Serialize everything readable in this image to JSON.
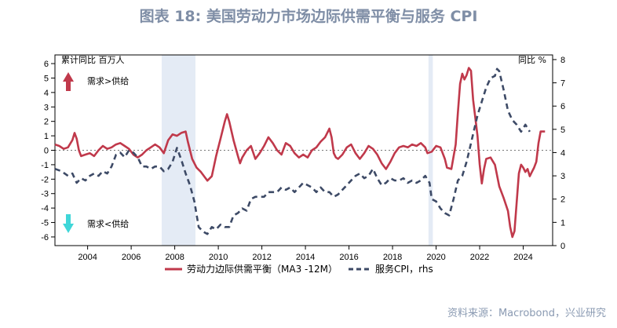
{
  "title": "图表 18: 美国劳动力市场边际供需平衡与服务 CPI",
  "source": "资料来源：Macrobond，兴业研究",
  "left_unit": "累计同比  百万人",
  "right_unit": "同比  %",
  "annotation_up": "需求>供给",
  "annotation_down": "需求<供给",
  "colors": {
    "labor": "#c0394b",
    "cpi": "#3d4a66",
    "recession": "#e4ebf5",
    "arrow_up": "#c0394b",
    "arrow_down": "#3fd6d8"
  },
  "chart_data": {
    "type": "line",
    "x_ticks": [
      "2004",
      "2006",
      "2008",
      "2010",
      "2012",
      "2014",
      "2016",
      "2018",
      "2020",
      "2022",
      "2024"
    ],
    "y_left": {
      "ticks": [
        "-6",
        "-5",
        "-4",
        "-3",
        "-2",
        "-1",
        "0",
        "1",
        "2",
        "3",
        "4",
        "5",
        "6"
      ],
      "range": [
        -6.6,
        6.6
      ]
    },
    "y_right": {
      "ticks": [
        "0",
        "1",
        "2",
        "3",
        "4",
        "5",
        "6",
        "7",
        "8"
      ],
      "range": [
        0,
        8.2
      ]
    },
    "recession_shading": [
      [
        2007.9,
        2009.45
      ],
      [
        2020.15,
        2020.35
      ]
    ],
    "series": [
      {
        "name": "劳动力边际供需平衡（MA3 -12M）",
        "axis": "left",
        "points": [
          [
            2003.0,
            0.4
          ],
          [
            2003.2,
            0.3
          ],
          [
            2003.4,
            0.1
          ],
          [
            2003.6,
            0.2
          ],
          [
            2003.8,
            0.7
          ],
          [
            2003.9,
            1.2
          ],
          [
            2004.0,
            0.8
          ],
          [
            2004.1,
            0.0
          ],
          [
            2004.2,
            -0.4
          ],
          [
            2004.4,
            -0.3
          ],
          [
            2004.6,
            -0.2
          ],
          [
            2004.8,
            -0.4
          ],
          [
            2005.0,
            0.0
          ],
          [
            2005.2,
            0.3
          ],
          [
            2005.4,
            0.1
          ],
          [
            2005.6,
            0.2
          ],
          [
            2005.8,
            0.4
          ],
          [
            2006.0,
            0.5
          ],
          [
            2006.2,
            0.3
          ],
          [
            2006.4,
            0.1
          ],
          [
            2006.6,
            -0.3
          ],
          [
            2006.8,
            -0.5
          ],
          [
            2007.0,
            -0.3
          ],
          [
            2007.2,
            0.0
          ],
          [
            2007.4,
            0.2
          ],
          [
            2007.6,
            0.4
          ],
          [
            2007.8,
            0.2
          ],
          [
            2008.0,
            -0.2
          ],
          [
            2008.2,
            0.7
          ],
          [
            2008.4,
            1.1
          ],
          [
            2008.6,
            1.0
          ],
          [
            2008.8,
            1.2
          ],
          [
            2009.0,
            1.3
          ],
          [
            2009.1,
            0.6
          ],
          [
            2009.3,
            -0.6
          ],
          [
            2009.5,
            -1.2
          ],
          [
            2009.7,
            -1.5
          ],
          [
            2009.9,
            -1.9
          ],
          [
            2010.0,
            -2.1
          ],
          [
            2010.2,
            -1.8
          ],
          [
            2010.4,
            -0.4
          ],
          [
            2010.6,
            0.8
          ],
          [
            2010.8,
            2.0
          ],
          [
            2010.9,
            2.5
          ],
          [
            2011.0,
            2.0
          ],
          [
            2011.2,
            0.7
          ],
          [
            2011.4,
            -0.4
          ],
          [
            2011.5,
            -0.9
          ],
          [
            2011.6,
            -0.5
          ],
          [
            2011.8,
            0.0
          ],
          [
            2012.0,
            0.3
          ],
          [
            2012.2,
            -0.6
          ],
          [
            2012.4,
            -0.2
          ],
          [
            2012.6,
            0.3
          ],
          [
            2012.8,
            0.9
          ],
          [
            2013.0,
            0.5
          ],
          [
            2013.2,
            0.0
          ],
          [
            2013.4,
            -0.3
          ],
          [
            2013.6,
            0.5
          ],
          [
            2013.8,
            0.3
          ],
          [
            2014.0,
            -0.2
          ],
          [
            2014.2,
            -0.5
          ],
          [
            2014.4,
            -0.3
          ],
          [
            2014.6,
            -0.5
          ],
          [
            2014.8,
            0.0
          ],
          [
            2015.0,
            0.2
          ],
          [
            2015.2,
            0.6
          ],
          [
            2015.4,
            0.9
          ],
          [
            2015.6,
            1.5
          ],
          [
            2015.7,
            0.9
          ],
          [
            2015.8,
            -0.2
          ],
          [
            2015.9,
            -0.5
          ],
          [
            2016.0,
            -0.6
          ],
          [
            2016.2,
            -0.3
          ],
          [
            2016.4,
            0.2
          ],
          [
            2016.6,
            0.4
          ],
          [
            2016.8,
            -0.2
          ],
          [
            2017.0,
            -0.6
          ],
          [
            2017.2,
            -0.2
          ],
          [
            2017.4,
            0.3
          ],
          [
            2017.6,
            0.1
          ],
          [
            2017.8,
            -0.3
          ],
          [
            2018.0,
            -0.9
          ],
          [
            2018.2,
            -1.3
          ],
          [
            2018.4,
            -0.8
          ],
          [
            2018.6,
            -0.2
          ],
          [
            2018.8,
            0.2
          ],
          [
            2019.0,
            0.3
          ],
          [
            2019.2,
            0.2
          ],
          [
            2019.4,
            0.4
          ],
          [
            2019.6,
            0.3
          ],
          [
            2019.8,
            0.5
          ],
          [
            2020.0,
            0.2
          ],
          [
            2020.1,
            -0.2
          ],
          [
            2020.3,
            -0.1
          ],
          [
            2020.5,
            0.3
          ],
          [
            2020.7,
            0.2
          ],
          [
            2020.9,
            -0.6
          ],
          [
            2021.0,
            -1.2
          ],
          [
            2021.2,
            -1.3
          ],
          [
            2021.4,
            0.4
          ],
          [
            2021.5,
            2.6
          ],
          [
            2021.6,
            4.6
          ],
          [
            2021.7,
            5.3
          ],
          [
            2021.8,
            4.9
          ],
          [
            2021.9,
            5.2
          ],
          [
            2022.0,
            5.7
          ],
          [
            2022.1,
            5.5
          ],
          [
            2022.2,
            3.5
          ],
          [
            2022.4,
            1.0
          ],
          [
            2022.5,
            -1.0
          ],
          [
            2022.6,
            -2.3
          ],
          [
            2022.7,
            -1.3
          ],
          [
            2022.8,
            -0.6
          ],
          [
            2023.0,
            -0.5
          ],
          [
            2023.2,
            -1.0
          ],
          [
            2023.4,
            -2.5
          ],
          [
            2023.6,
            -3.3
          ],
          [
            2023.8,
            -4.2
          ],
          [
            2023.9,
            -5.3
          ],
          [
            2024.0,
            -6.0
          ],
          [
            2024.1,
            -5.6
          ],
          [
            2024.2,
            -3.6
          ],
          [
            2024.3,
            -1.6
          ],
          [
            2024.4,
            -1.0
          ],
          [
            2024.5,
            -1.2
          ],
          [
            2024.6,
            -1.5
          ],
          [
            2024.7,
            -1.3
          ],
          [
            2024.8,
            -1.8
          ],
          [
            2024.9,
            -1.5
          ],
          [
            2025.0,
            -1.2
          ],
          [
            2025.1,
            -0.8
          ],
          [
            2025.2,
            0.5
          ],
          [
            2025.3,
            1.3
          ],
          [
            2025.5,
            1.3
          ]
        ]
      },
      {
        "name": "服务CPI，rhs",
        "axis": "right",
        "points": [
          [
            2003.0,
            3.3
          ],
          [
            2003.3,
            3.2
          ],
          [
            2003.6,
            3.0
          ],
          [
            2003.8,
            3.1
          ],
          [
            2004.0,
            2.7
          ],
          [
            2004.2,
            2.9
          ],
          [
            2004.4,
            2.8
          ],
          [
            2004.6,
            3.0
          ],
          [
            2004.8,
            3.1
          ],
          [
            2005.0,
            3.0
          ],
          [
            2005.2,
            3.2
          ],
          [
            2005.4,
            3.1
          ],
          [
            2005.6,
            3.4
          ],
          [
            2005.8,
            3.9
          ],
          [
            2006.0,
            4.0
          ],
          [
            2006.2,
            3.8
          ],
          [
            2006.4,
            4.1
          ],
          [
            2006.6,
            4.0
          ],
          [
            2006.8,
            3.8
          ],
          [
            2007.0,
            3.4
          ],
          [
            2007.2,
            3.4
          ],
          [
            2007.4,
            3.3
          ],
          [
            2007.6,
            3.4
          ],
          [
            2007.8,
            3.4
          ],
          [
            2008.0,
            3.2
          ],
          [
            2008.2,
            3.3
          ],
          [
            2008.4,
            3.6
          ],
          [
            2008.6,
            4.2
          ],
          [
            2008.8,
            3.7
          ],
          [
            2009.0,
            3.1
          ],
          [
            2009.2,
            2.6
          ],
          [
            2009.4,
            1.9
          ],
          [
            2009.6,
            0.8
          ],
          [
            2009.8,
            0.6
          ],
          [
            2010.0,
            0.5
          ],
          [
            2010.2,
            0.8
          ],
          [
            2010.4,
            0.7
          ],
          [
            2010.6,
            0.9
          ],
          [
            2010.8,
            0.8
          ],
          [
            2011.0,
            0.8
          ],
          [
            2011.2,
            1.3
          ],
          [
            2011.4,
            1.4
          ],
          [
            2011.6,
            1.6
          ],
          [
            2011.8,
            1.5
          ],
          [
            2012.0,
            2.0
          ],
          [
            2012.2,
            2.1
          ],
          [
            2012.4,
            2.1
          ],
          [
            2012.6,
            2.1
          ],
          [
            2012.8,
            2.3
          ],
          [
            2013.0,
            2.3
          ],
          [
            2013.2,
            2.3
          ],
          [
            2013.4,
            2.5
          ],
          [
            2013.6,
            2.4
          ],
          [
            2013.8,
            2.5
          ],
          [
            2014.0,
            2.3
          ],
          [
            2014.2,
            2.5
          ],
          [
            2014.4,
            2.7
          ],
          [
            2014.6,
            2.6
          ],
          [
            2014.8,
            2.5
          ],
          [
            2015.0,
            2.3
          ],
          [
            2015.2,
            2.5
          ],
          [
            2015.4,
            2.3
          ],
          [
            2015.6,
            2.3
          ],
          [
            2015.8,
            2.1
          ],
          [
            2016.0,
            2.2
          ],
          [
            2016.2,
            2.4
          ],
          [
            2016.4,
            2.6
          ],
          [
            2016.6,
            2.8
          ],
          [
            2016.8,
            3.0
          ],
          [
            2017.0,
            3.1
          ],
          [
            2017.2,
            2.9
          ],
          [
            2017.4,
            3.0
          ],
          [
            2017.6,
            3.3
          ],
          [
            2017.8,
            2.9
          ],
          [
            2018.0,
            2.6
          ],
          [
            2018.2,
            2.7
          ],
          [
            2018.4,
            2.9
          ],
          [
            2018.6,
            2.8
          ],
          [
            2018.8,
            2.8
          ],
          [
            2019.0,
            2.9
          ],
          [
            2019.2,
            2.7
          ],
          [
            2019.4,
            2.8
          ],
          [
            2019.6,
            2.7
          ],
          [
            2019.8,
            2.8
          ],
          [
            2020.0,
            3.0
          ],
          [
            2020.2,
            2.7
          ],
          [
            2020.3,
            2.0
          ],
          [
            2020.5,
            1.9
          ],
          [
            2020.7,
            1.6
          ],
          [
            2020.9,
            1.4
          ],
          [
            2021.1,
            1.3
          ],
          [
            2021.3,
            2.0
          ],
          [
            2021.5,
            2.8
          ],
          [
            2021.7,
            3.0
          ],
          [
            2021.9,
            3.6
          ],
          [
            2022.0,
            4.0
          ],
          [
            2022.2,
            4.8
          ],
          [
            2022.4,
            5.6
          ],
          [
            2022.6,
            6.2
          ],
          [
            2022.8,
            6.8
          ],
          [
            2023.0,
            7.2
          ],
          [
            2023.2,
            7.3
          ],
          [
            2023.3,
            7.6
          ],
          [
            2023.4,
            7.5
          ],
          [
            2023.6,
            6.7
          ],
          [
            2023.8,
            5.8
          ],
          [
            2024.0,
            5.4
          ],
          [
            2024.2,
            5.2
          ],
          [
            2024.4,
            4.9
          ],
          [
            2024.6,
            5.2
          ],
          [
            2024.8,
            4.9
          ]
        ]
      }
    ]
  }
}
